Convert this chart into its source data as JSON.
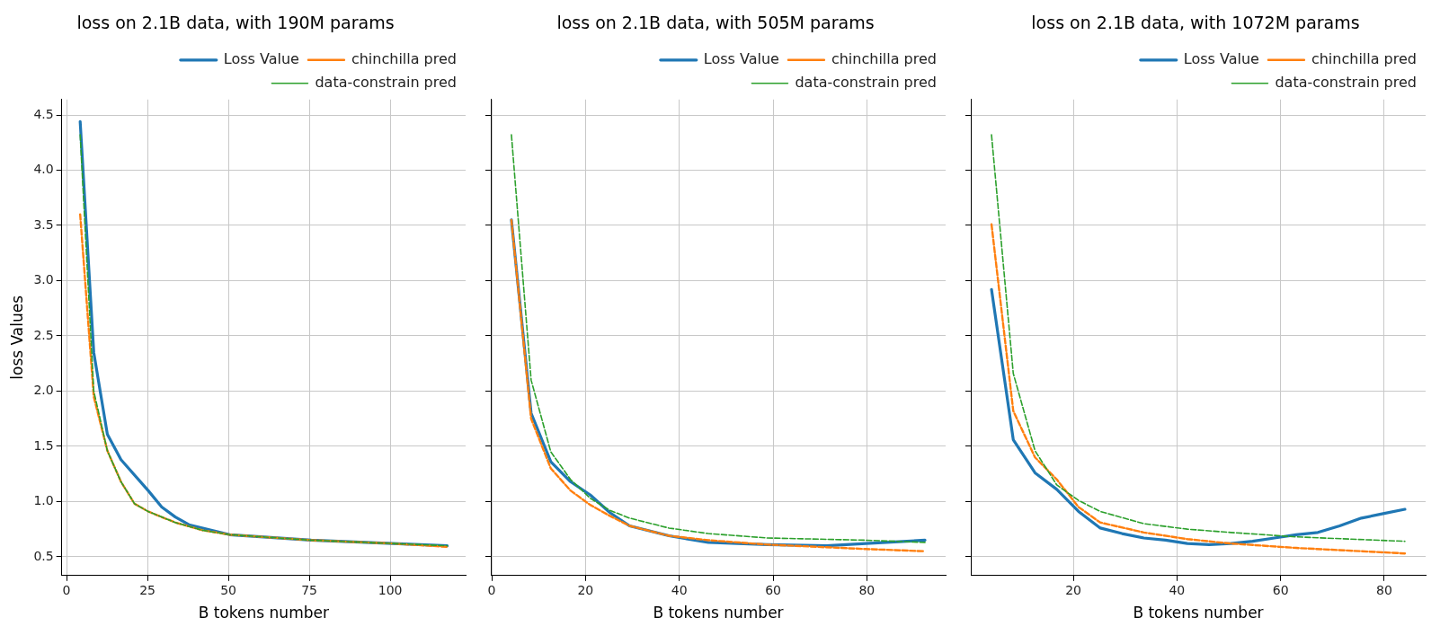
{
  "chart_data": [
    {
      "type": "line",
      "title": "loss on 2.1B data, with 190M params",
      "xlabel": "B tokens number",
      "ylabel": "loss Values",
      "xlim": [
        -1.5,
        123.3
      ],
      "xticks": [
        0,
        25,
        50,
        75,
        100
      ],
      "ylim": [
        0.33,
        4.64
      ],
      "yticks": [
        0.5,
        {
          "value": 1,
          "label": "1.0"
        },
        1.5,
        {
          "value": 2,
          "label": "2.0"
        },
        2.5,
        {
          "value": 3,
          "label": "3.0"
        },
        3.5,
        {
          "value": 4,
          "label": "4.0"
        },
        4.5
      ],
      "grid": true,
      "legend": "top right",
      "marker": "none",
      "series": [
        {
          "name": "Loss Value",
          "color": "#1f77b4",
          "line_style": "solid",
          "x": [
            4.2,
            8.4,
            12.6,
            16.8,
            25.2,
            29.4,
            33.6,
            37.8,
            50.4,
            75.6,
            100.8,
            117.6
          ],
          "values": [
            4.44,
            2.35,
            1.61,
            1.38,
            1.1,
            0.95,
            0.86,
            0.79,
            0.7,
            0.65,
            0.62,
            0.6
          ]
        },
        {
          "name": "chinchilla pred",
          "color": "#ff7f0e",
          "line_style": "dashed",
          "x": [
            4.2,
            8.4,
            12.6,
            16.8,
            21,
            25.2,
            33.6,
            42,
            50.4,
            75.6,
            100.8,
            117.6
          ],
          "values": [
            3.6,
            1.95,
            1.46,
            1.18,
            0.98,
            0.91,
            0.81,
            0.74,
            0.7,
            0.65,
            0.62,
            0.59
          ]
        },
        {
          "name": "data-constrain pred",
          "color": "#2ca02c",
          "line_style": "dashed",
          "x": [
            4.2,
            8.4,
            12.6,
            16.8,
            21,
            25.2,
            33.6,
            42,
            50.4,
            75.6,
            100.8,
            117.6
          ],
          "values": [
            4.32,
            2.0,
            1.46,
            1.18,
            0.98,
            0.91,
            0.81,
            0.74,
            0.7,
            0.65,
            0.62,
            0.6
          ]
        }
      ]
    },
    {
      "type": "line",
      "title": "loss on 2.1B data, with 505M params",
      "xlabel": "B tokens number",
      "xlim": [
        -0.2,
        96.8
      ],
      "xticks": [
        0,
        20,
        40,
        60,
        80
      ],
      "ylim": [
        0.33,
        4.64
      ],
      "yticks": [
        0.5,
        1.0,
        1.5,
        2.0,
        2.5,
        3.0,
        3.5,
        4.0,
        4.5
      ],
      "tick_labels": "x",
      "grid": true,
      "legend": "top right",
      "marker": "none",
      "series": [
        {
          "name": "Loss Value",
          "color": "#1f77b4",
          "line_style": "solid",
          "x": [
            4.2,
            8.4,
            12.6,
            16.8,
            21,
            25.2,
            29.4,
            37.8,
            46.2,
            58.8,
            71.4,
            79.8,
            92.4
          ],
          "values": [
            3.55,
            1.8,
            1.36,
            1.18,
            1.06,
            0.9,
            0.78,
            0.69,
            0.63,
            0.61,
            0.6,
            0.62,
            0.65
          ]
        },
        {
          "name": "chinchilla pred",
          "color": "#ff7f0e",
          "line_style": "dashed",
          "x": [
            4.2,
            8.4,
            12.6,
            16.8,
            21,
            25.2,
            29.4,
            37.8,
            46.2,
            58.8,
            79.8,
            92.4
          ],
          "values": [
            3.55,
            1.75,
            1.3,
            1.1,
            0.97,
            0.87,
            0.78,
            0.69,
            0.65,
            0.61,
            0.57,
            0.55
          ]
        },
        {
          "name": "data-constrain pred",
          "color": "#2ca02c",
          "line_style": "dashed",
          "x": [
            4.2,
            8.4,
            12.6,
            16.8,
            21,
            25.2,
            29.4,
            37.8,
            46.2,
            58.8,
            79.8,
            92.4
          ],
          "values": [
            4.32,
            2.1,
            1.45,
            1.2,
            1.03,
            0.92,
            0.85,
            0.76,
            0.71,
            0.67,
            0.65,
            0.63
          ]
        }
      ]
    },
    {
      "type": "line",
      "title": "loss on 2.1B data, with 1072M params",
      "xlabel": "B tokens number",
      "xlim": [
        0.2,
        88
      ],
      "xticks": [
        20,
        40,
        60,
        80
      ],
      "ylim": [
        0.33,
        4.64
      ],
      "yticks": [
        0.5,
        1.0,
        1.5,
        2.0,
        2.5,
        3.0,
        3.5,
        4.0,
        4.5
      ],
      "tick_labels": "x",
      "grid": true,
      "legend": "top right",
      "marker": "none",
      "series": [
        {
          "name": "Loss Value",
          "color": "#1f77b4",
          "line_style": "solid",
          "x": [
            4.2,
            8.4,
            12.6,
            16.8,
            21,
            25.2,
            29.4,
            33.6,
            37.8,
            42,
            46.2,
            50.4,
            54.6,
            58.8,
            63,
            67.2,
            71.4,
            75.6,
            79.8,
            84
          ],
          "values": [
            2.92,
            1.56,
            1.26,
            1.11,
            0.91,
            0.76,
            0.71,
            0.67,
            0.65,
            0.62,
            0.61,
            0.62,
            0.64,
            0.67,
            0.7,
            0.72,
            0.78,
            0.85,
            0.89,
            0.93
          ]
        },
        {
          "name": "chinchilla pred",
          "color": "#ff7f0e",
          "line_style": "dashed",
          "x": [
            4.2,
            8.4,
            12.6,
            16.8,
            21,
            25.2,
            33.6,
            42,
            50.4,
            63,
            84
          ],
          "values": [
            3.51,
            1.82,
            1.4,
            1.2,
            0.95,
            0.81,
            0.72,
            0.66,
            0.62,
            0.58,
            0.53
          ]
        },
        {
          "name": "data-constrain pred",
          "color": "#2ca02c",
          "line_style": "dashed",
          "x": [
            4.2,
            8.4,
            12.6,
            16.8,
            21,
            25.2,
            33.6,
            42,
            50.4,
            63,
            84
          ],
          "values": [
            4.32,
            2.16,
            1.46,
            1.15,
            1.01,
            0.91,
            0.8,
            0.75,
            0.72,
            0.68,
            0.64
          ]
        }
      ]
    }
  ]
}
